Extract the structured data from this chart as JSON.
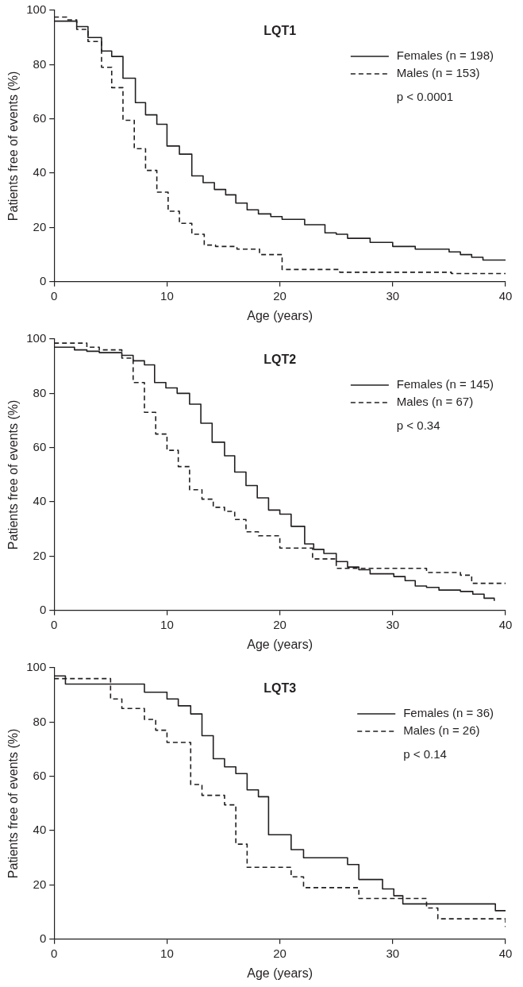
{
  "chart_data": [
    {
      "type": "step",
      "title": "LQT1",
      "xlabel": "Age (years)",
      "ylabel": "Patients free of events (%)",
      "xlim": [
        0,
        40
      ],
      "ylim": [
        0,
        100
      ],
      "xticks": [
        0,
        10,
        20,
        30,
        40
      ],
      "yticks": [
        0,
        20,
        40,
        60,
        80,
        100
      ],
      "grid": false,
      "legend": "top right",
      "marker": "none",
      "annotations": [
        "p < 0.0001"
      ],
      "series": [
        {
          "name": "Females (n = 198)",
          "color": "#231f20",
          "line_style": "solid",
          "x": [
            0,
            2,
            3,
            4.2,
            5.1,
            6.1,
            7.2,
            8.1,
            9.1,
            10,
            11.1,
            12.2,
            13.2,
            14.2,
            15.2,
            16.1,
            17.1,
            18.1,
            19.2,
            20.2,
            22.2,
            24,
            25,
            26,
            28,
            30,
            32,
            35,
            36,
            37,
            38,
            40
          ],
          "values": [
            96,
            94,
            90,
            85,
            83,
            75,
            66,
            61.5,
            58,
            50,
            47,
            39,
            36.5,
            34,
            32,
            29,
            26.5,
            25,
            24,
            23,
            21,
            18,
            17.5,
            16,
            14.5,
            13,
            12,
            11,
            10,
            9,
            8,
            8
          ]
        },
        {
          "name": "Males (n = 153)",
          "color": "#231f20",
          "line_style": "dashed",
          "x": [
            0,
            1.1,
            2,
            3,
            4.2,
            5.1,
            6.1,
            7.1,
            8.1,
            9.1,
            10.1,
            11.1,
            12.2,
            13.3,
            14.3,
            16.2,
            18.2,
            20.2,
            25.3,
            35.2,
            40
          ],
          "values": [
            97.5,
            96.5,
            93,
            88.5,
            79,
            71.5,
            59.5,
            49,
            41,
            33,
            26,
            21.5,
            17.5,
            13.5,
            13,
            12,
            10,
            4.5,
            3.5,
            3,
            3
          ]
        }
      ]
    },
    {
      "type": "step",
      "title": "LQT2",
      "xlabel": "Age (years)",
      "ylabel": "Patients free of events (%)",
      "xlim": [
        0,
        40
      ],
      "ylim": [
        0,
        100
      ],
      "xticks": [
        0,
        10,
        20,
        30,
        40
      ],
      "yticks": [
        0,
        20,
        40,
        60,
        80,
        100
      ],
      "grid": false,
      "legend": "top right",
      "marker": "none",
      "annotations": [
        "p < 0.34"
      ],
      "series": [
        {
          "name": "Females (n = 145)",
          "color": "#231f20",
          "line_style": "solid",
          "x": [
            0,
            1.8,
            2.9,
            4,
            6,
            7,
            8,
            8.9,
            9.9,
            10.9,
            12,
            13,
            14,
            15.1,
            16,
            17,
            18,
            19,
            20,
            21,
            22.2,
            23,
            23.9,
            25,
            26,
            27,
            28,
            30.1,
            31.1,
            32,
            33,
            34.1,
            36,
            37.1,
            38.1,
            39
          ],
          "values": [
            97,
            96,
            95.5,
            95,
            94,
            92,
            90.5,
            84,
            82,
            80,
            76,
            69,
            62,
            57,
            51,
            46,
            41.5,
            37,
            35.5,
            31,
            24.5,
            22.5,
            21,
            18,
            16,
            15,
            13.5,
            12.5,
            11,
            9,
            8.5,
            7.5,
            7,
            6,
            4.5,
            3.5
          ]
        },
        {
          "name": "Males (n = 67)",
          "color": "#231f20",
          "line_style": "dashed",
          "x": [
            0,
            2.9,
            4,
            6,
            7,
            8,
            9,
            10,
            11,
            12,
            13.1,
            14.1,
            15.1,
            16,
            17,
            18.1,
            20,
            22.9,
            25,
            33,
            36,
            37,
            40
          ],
          "values": [
            98.5,
            97,
            96,
            93,
            84,
            73,
            65,
            59,
            53,
            44.5,
            41,
            38,
            36.5,
            33.5,
            29,
            27.5,
            23,
            19,
            15.5,
            14,
            13,
            10,
            10
          ]
        }
      ]
    },
    {
      "type": "step",
      "title": "LQT3",
      "xlabel": "Age (years)",
      "ylabel": "Patients free of events (%)",
      "xlim": [
        0,
        40
      ],
      "ylim": [
        0,
        100
      ],
      "xticks": [
        0,
        10,
        20,
        30,
        40
      ],
      "yticks": [
        0,
        20,
        40,
        60,
        80,
        100
      ],
      "grid": false,
      "legend": "top right",
      "marker": "none",
      "annotations": [
        "p < 0.14"
      ],
      "series": [
        {
          "name": "Females (n = 36)",
          "color": "#231f20",
          "line_style": "solid",
          "x": [
            0,
            1,
            8,
            10,
            11,
            12.1,
            13.1,
            14.1,
            15.1,
            16.1,
            17.1,
            18.1,
            19,
            21,
            22.1,
            26,
            27,
            29.1,
            30.1,
            30.9,
            39.1,
            40
          ],
          "values": [
            97,
            94,
            91,
            88.5,
            86,
            83,
            75,
            66.5,
            63.5,
            61,
            55,
            52.5,
            38.5,
            33,
            30,
            27.5,
            22,
            18.5,
            16,
            13,
            10.5,
            10.5
          ]
        },
        {
          "name": "Males (n = 26)",
          "color": "#231f20",
          "line_style": "dashed",
          "x": [
            0,
            5,
            6,
            8,
            9,
            10,
            12.1,
            13.1,
            15.1,
            16.1,
            17.1,
            21,
            22.1,
            27,
            33,
            34,
            40
          ],
          "values": [
            96,
            88.5,
            85,
            81,
            77,
            72.5,
            57,
            53,
            49.5,
            35,
            26.5,
            23,
            19,
            15,
            11.5,
            7.5,
            4.5
          ]
        }
      ]
    }
  ]
}
